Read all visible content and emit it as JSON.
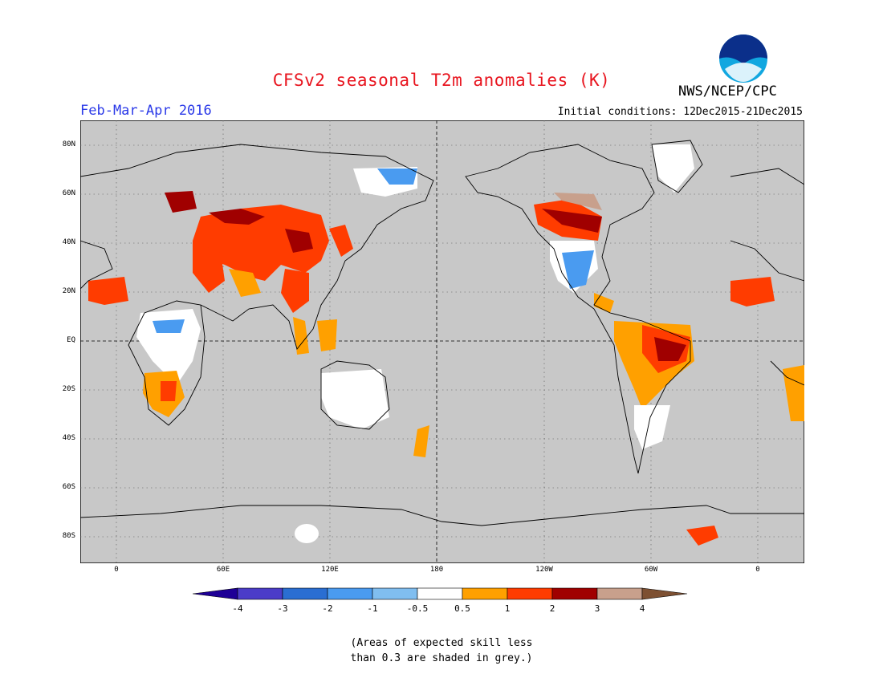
{
  "title": "CFSv2 seasonal T2m anomalies (K)",
  "period": "Feb-Mar-Apr 2016",
  "initial_conditions": "Initial conditions: 12Dec2015-21Dec2015",
  "org": "NWS/NCEP/CPC",
  "logo_text": "NOAA",
  "lat_labels": [
    "80N",
    "60N",
    "40N",
    "20N",
    "EQ",
    "20S",
    "40S",
    "60S",
    "80S"
  ],
  "lon_labels": [
    "0",
    "60E",
    "120E",
    "180",
    "120W",
    "60W",
    "0"
  ],
  "colorbar": {
    "colors": [
      "#1e0096",
      "#4b3cc8",
      "#2a6ed2",
      "#4a9bf0",
      "#80bef0",
      "#ffffff",
      "#ffa000",
      "#ff3c00",
      "#a00000",
      "#c8a08c",
      "#7d5032"
    ],
    "labels": [
      "-4",
      "-3",
      "-2",
      "-1",
      "-0.5",
      "0.5",
      "1",
      "2",
      "3",
      "4"
    ]
  },
  "note_line1": "(Areas of expected skill less",
  "note_line2": "than 0.3 are shaded in grey.)"
}
